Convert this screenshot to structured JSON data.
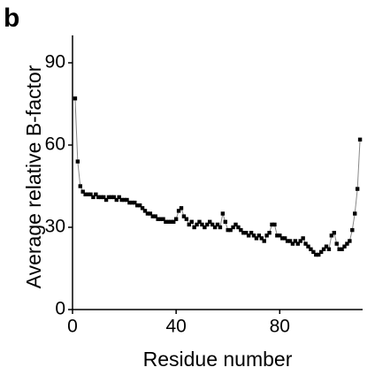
{
  "chart_data": {
    "type": "line",
    "panel_label": "b",
    "xlabel": "Residue number",
    "ylabel": "Average relative B-factor",
    "x": [
      1,
      2,
      3,
      4,
      5,
      6,
      7,
      8,
      9,
      10,
      11,
      12,
      13,
      14,
      15,
      16,
      17,
      18,
      19,
      20,
      21,
      22,
      23,
      24,
      25,
      26,
      27,
      28,
      29,
      30,
      31,
      32,
      33,
      34,
      35,
      36,
      37,
      38,
      39,
      40,
      41,
      42,
      43,
      44,
      45,
      46,
      47,
      48,
      49,
      50,
      51,
      52,
      53,
      54,
      55,
      56,
      57,
      58,
      59,
      60,
      61,
      62,
      63,
      64,
      65,
      66,
      67,
      68,
      69,
      70,
      71,
      72,
      73,
      74,
      75,
      76,
      77,
      78,
      79,
      80,
      81,
      82,
      83,
      84,
      85,
      86,
      87,
      88,
      89,
      90,
      91,
      92,
      93,
      94,
      95,
      96,
      97,
      98,
      99,
      100,
      101,
      102,
      103,
      104,
      105,
      106,
      107,
      108,
      109,
      110,
      111
    ],
    "values": [
      77,
      54,
      45,
      43,
      42,
      42,
      42,
      41,
      42,
      41,
      41,
      41,
      40,
      41,
      41,
      41,
      40,
      41,
      40,
      40,
      40,
      39,
      39,
      39,
      38,
      38,
      37,
      36,
      35,
      35,
      34,
      34,
      33,
      33,
      33,
      32,
      32,
      32,
      32,
      33,
      36,
      37,
      34,
      33,
      31,
      32,
      30,
      31,
      32,
      31,
      30,
      31,
      32,
      31,
      30,
      31,
      30,
      35,
      32,
      29,
      29,
      30,
      31,
      30,
      29,
      28,
      28,
      27,
      28,
      27,
      26,
      27,
      26,
      25,
      27,
      28,
      31,
      31,
      27,
      27,
      26,
      26,
      25,
      25,
      24,
      25,
      24,
      25,
      26,
      24,
      23,
      22,
      21,
      20,
      20,
      21,
      22,
      23,
      22,
      27,
      28,
      24,
      22,
      22,
      23,
      24,
      25,
      29,
      35,
      44,
      62
    ],
    "color": "#000000",
    "line_color": "#888888",
    "xlim": [
      0,
      112
    ],
    "xticks": [
      0,
      40,
      80
    ],
    "ylim": [
      0,
      100
    ],
    "yticks": [
      0,
      30,
      60,
      90
    ]
  }
}
